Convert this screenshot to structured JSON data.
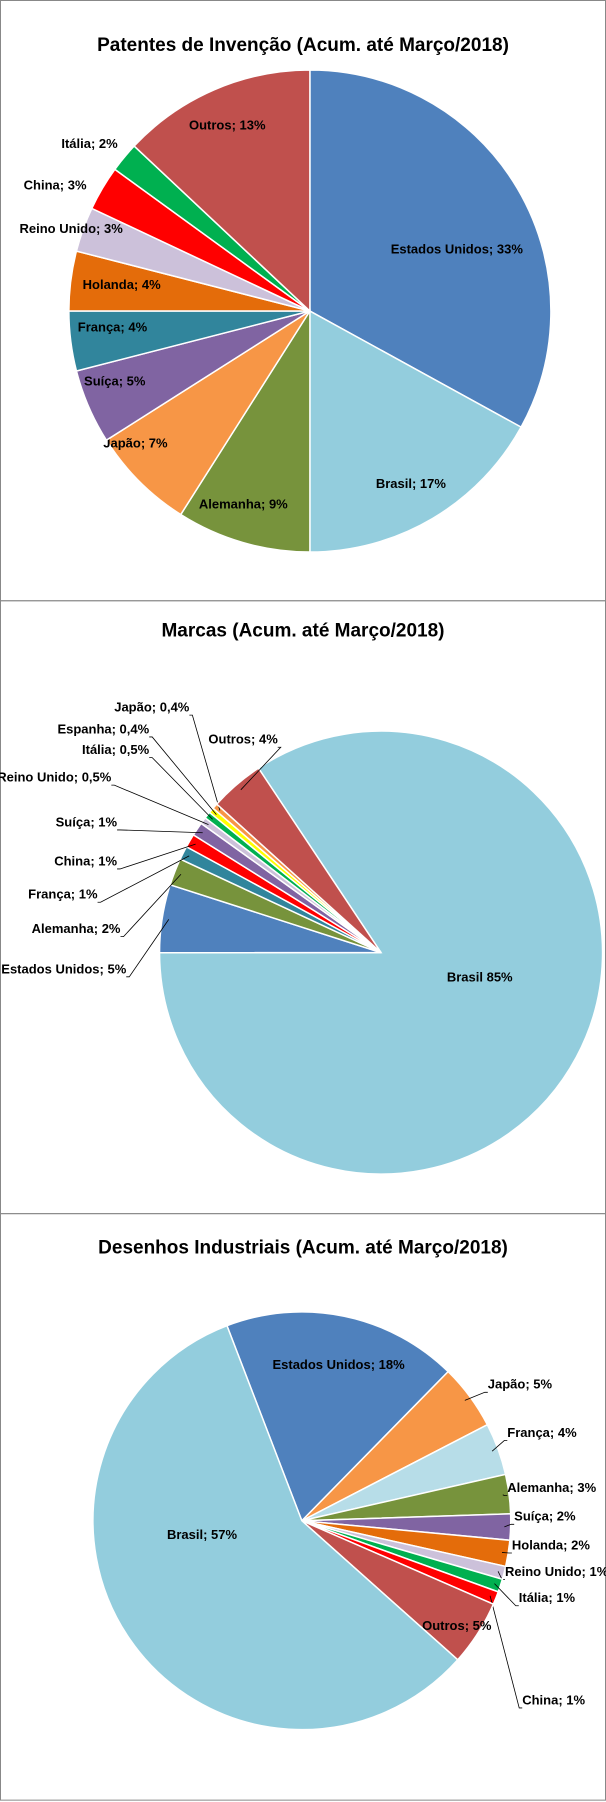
{
  "chart_data": [
    {
      "type": "pie",
      "title": "Patentes de Invenção (Acum. até Março/2018)",
      "categories": [
        "Estados Unidos",
        "Brasil",
        "Alemanha",
        "Japão",
        "Suíça",
        "França",
        "Holanda",
        "Reino Unido",
        "China",
        "Itália",
        "Outros"
      ],
      "values": [
        33,
        17,
        9,
        7,
        5,
        4,
        4,
        3,
        3,
        2,
        13
      ],
      "value_labels": [
        "Estados Unidos; 33%",
        "Brasil; 17%",
        "Alemanha; 9%",
        "Japão; 7%",
        "Suíça; 5%",
        "França; 4%",
        "Holanda; 4%",
        "Reino Unido; 3%",
        "China; 3%",
        "Itália; 2%",
        "Outros; 13%"
      ],
      "colors": [
        "#4f81bd",
        "#93cddd",
        "#77933c",
        "#f79646",
        "#8064a2",
        "#31859c",
        "#e46c0a",
        "#ccc1da",
        "#ff0000",
        "#00b050",
        "#c0504d"
      ]
    },
    {
      "type": "pie",
      "title": "Marcas (Acum. até Março/2018)",
      "categories": [
        "Brasil",
        "Estados Unidos",
        "Alemanha",
        "França",
        "China",
        "Suíça",
        "Reino Unido",
        "Itália",
        "Espanha",
        "Japão",
        "Outros"
      ],
      "values": [
        85,
        5,
        2,
        1,
        1,
        1,
        0.5,
        0.5,
        0.4,
        0.4,
        4
      ],
      "value_labels": [
        "Brasil 85%",
        "Estados Unidos; 5%",
        "Alemanha; 2%",
        "França; 1%",
        "China; 1%",
        "Suíça; 1%",
        "Reino Unido; 0,5%",
        "Itália; 0,5%",
        "Espanha; 0,4%",
        "Japão; 0,4%",
        "Outros; 4%"
      ],
      "colors": [
        "#93cddd",
        "#4f81bd",
        "#77933c",
        "#31859c",
        "#ff0000",
        "#8064a2",
        "#ccc1da",
        "#00b050",
        "#ffff00",
        "#f79646",
        "#c0504d"
      ]
    },
    {
      "type": "pie",
      "title": "Desenhos Industriais (Acum. até Março/2018)",
      "categories": [
        "Estados Unidos",
        "Japão",
        "França",
        "Alemanha",
        "Suíça",
        "Holanda",
        "Reino Unido",
        "Itália",
        "China",
        "Outros",
        "Brasil"
      ],
      "values": [
        18,
        5,
        4,
        3,
        2,
        2,
        1,
        1,
        1,
        5,
        57
      ],
      "value_labels": [
        "Estados Unidos; 18%",
        "Japão; 5%",
        "França; 4%",
        "Alemanha; 3%",
        "Suíça; 2%",
        "Holanda; 2%",
        "Reino Unido; 1%",
        "Itália; 1%",
        "China; 1%",
        "Outros; 5%",
        "Brasil; 57%"
      ],
      "colors": [
        "#4f81bd",
        "#f79646",
        "#b7dde8",
        "#77933c",
        "#8064a2",
        "#e46c0a",
        "#ccc1da",
        "#00b050",
        "#ff0000",
        "#c0504d",
        "#93cddd"
      ]
    }
  ]
}
